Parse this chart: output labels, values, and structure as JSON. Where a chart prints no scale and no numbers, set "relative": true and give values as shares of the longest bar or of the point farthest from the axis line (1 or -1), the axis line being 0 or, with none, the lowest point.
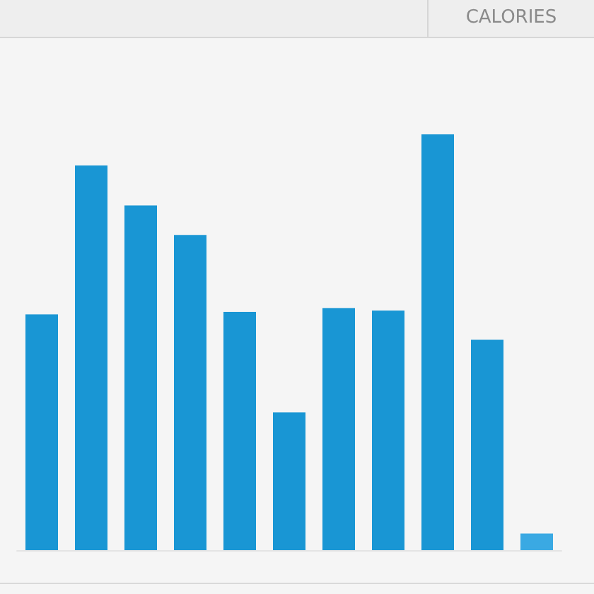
{
  "chart_data": {
    "type": "bar",
    "title": "CALORIES",
    "relative": true,
    "categories": [
      null,
      null,
      null,
      null,
      null,
      null,
      null,
      null,
      null,
      null,
      null
    ],
    "values": [
      0.567,
      0.925,
      0.829,
      0.758,
      0.573,
      0.331,
      0.582,
      0.576,
      1,
      0.506,
      0.04
    ],
    "colors": [
      "#1996d4",
      "#1996d4",
      "#1996d4",
      "#1996d4",
      "#1996d4",
      "#1996d4",
      "#1996d4",
      "#1996d4",
      "#1996d4",
      "#1996d4",
      "#3aa9e3"
    ]
  }
}
